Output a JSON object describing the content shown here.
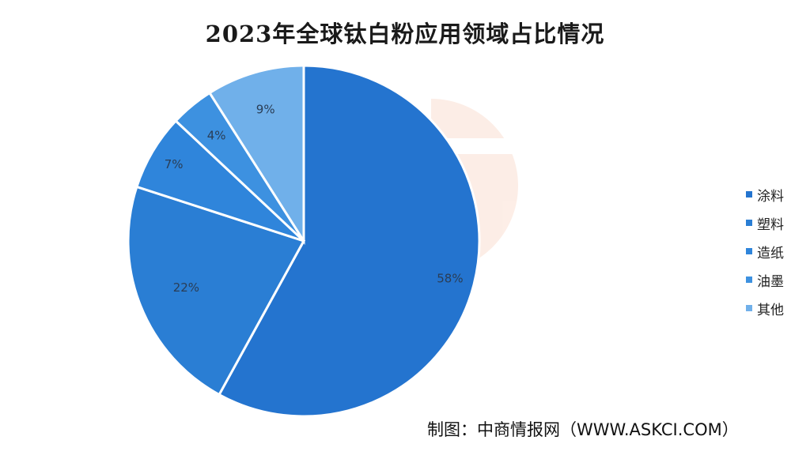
{
  "chart_data": {
    "type": "pie",
    "title": "2023年全球钛白粉应用领域占比情况",
    "categories": [
      "涂料",
      "塑料",
      "造纸",
      "油墨",
      "其他"
    ],
    "values": [
      58,
      22,
      7,
      4,
      9
    ],
    "value_labels": [
      "58%",
      "22%",
      "7%",
      "4%",
      "9%"
    ],
    "colors": [
      "#2474cf",
      "#2a7ed4",
      "#2f85db",
      "#3d91e0",
      "#70b0ea"
    ],
    "legend_position": "right",
    "start_angle_deg": 0,
    "direction": "clockwise"
  },
  "source": "制图：中商情报网（WWW.ASKCI.COM）"
}
